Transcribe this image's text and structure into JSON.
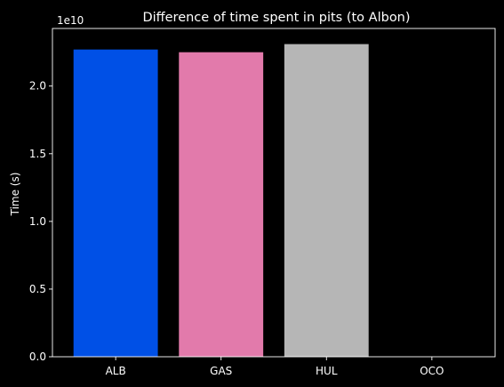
{
  "chart_data": {
    "type": "bar",
    "title": "Difference of time spent in pits (to Albon)",
    "xlabel": "",
    "ylabel": "Time (s)",
    "y_offset_label": "1e10",
    "categories": [
      "ALB",
      "GAS",
      "HUL",
      "OCO"
    ],
    "values": [
      22700000000,
      22500000000,
      23100000000,
      0
    ],
    "colors": [
      "#0050e6",
      "#e27aab",
      "#b6b6b6",
      "#000000"
    ],
    "y_ticks": [
      0,
      5000000000,
      10000000000,
      15000000000,
      20000000000
    ],
    "y_tick_labels": [
      "0.0",
      "0.5",
      "1.0",
      "1.5",
      "2.0"
    ],
    "ylim": [
      0,
      24255000000
    ],
    "grid": false,
    "legend": "none",
    "background": "#000000",
    "foreground": "#ffffff"
  }
}
